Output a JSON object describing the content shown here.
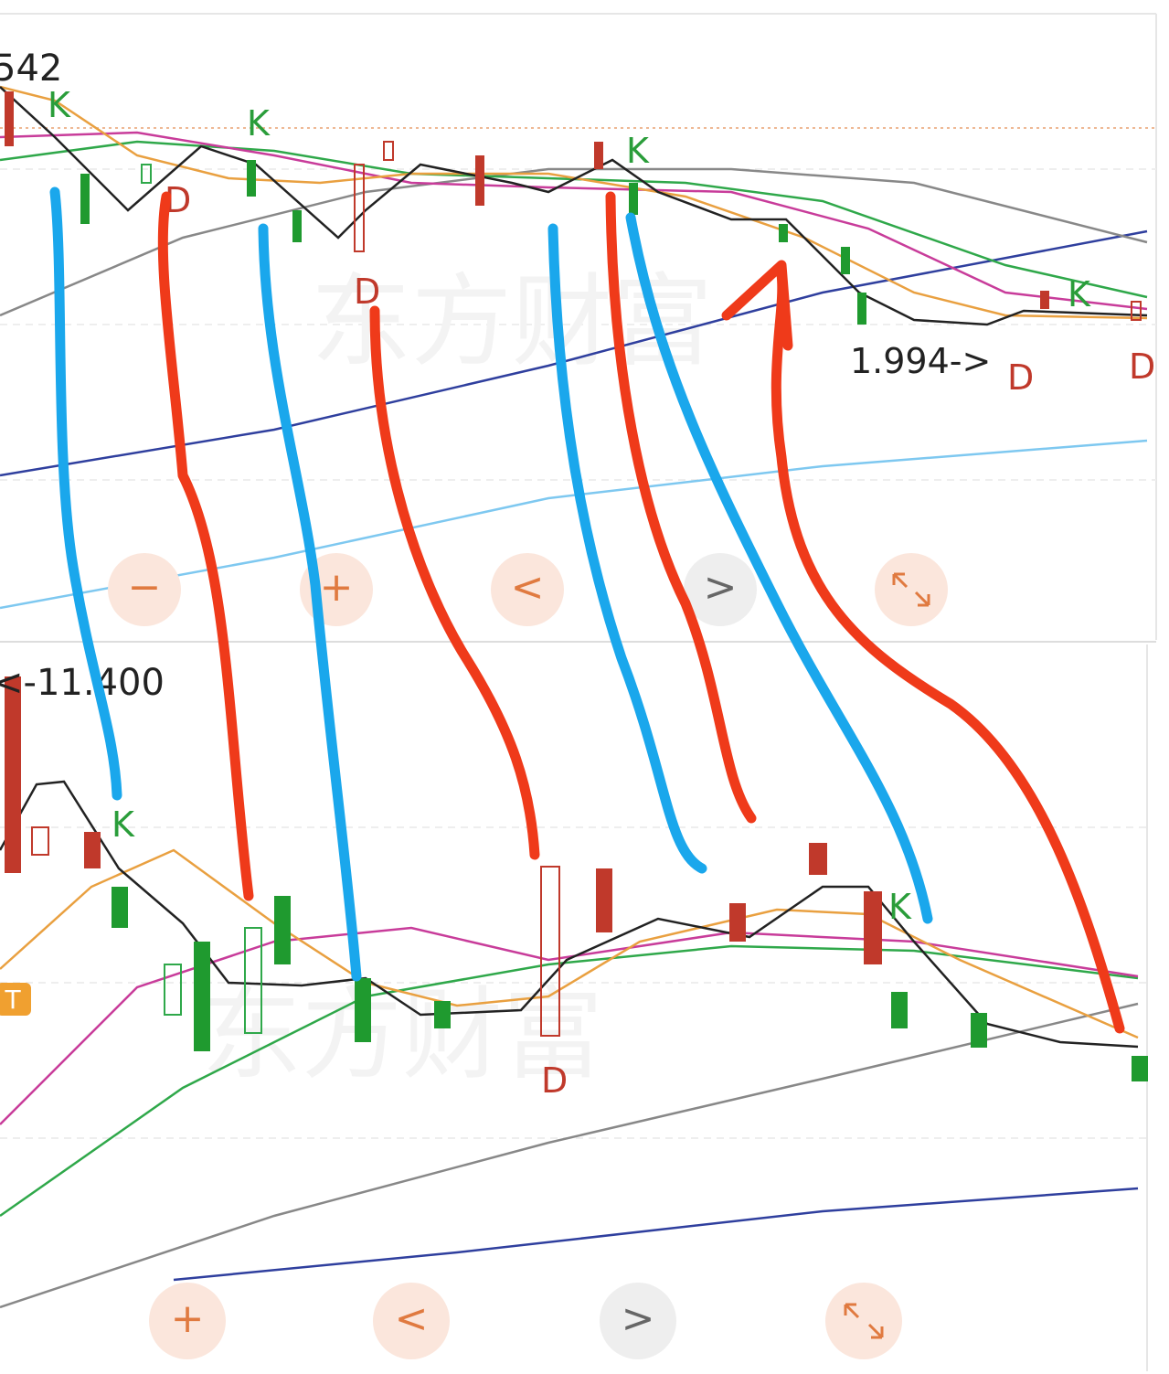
{
  "top_panel": {
    "price_label": "542",
    "markers": [
      "K",
      "D",
      "K",
      "D",
      "K",
      "D",
      "K",
      "D"
    ],
    "low_label": "1.994->",
    "watermark": "东方财富",
    "buttons": [
      "−",
      "+",
      "<",
      ">"
    ]
  },
  "bottom_panel": {
    "price_label": "<-11.400",
    "markers": [
      "K",
      "D",
      "K"
    ],
    "badge": "T",
    "watermark": "东方财富",
    "buttons": [
      "+",
      "<",
      ">"
    ]
  }
}
